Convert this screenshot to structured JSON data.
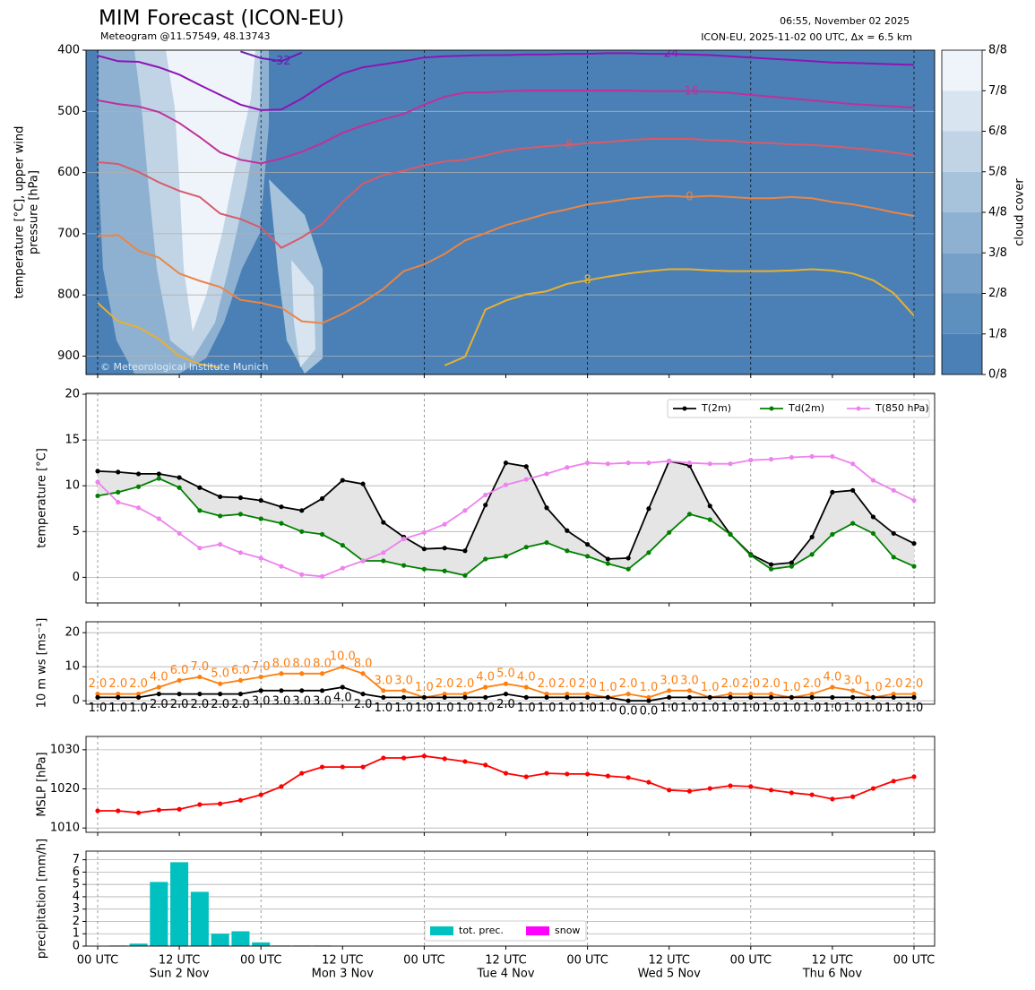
{
  "header": {
    "title": "MIM Forecast (ICON-EU)",
    "subtitle": "Meteogram @11.57549, 48.13743",
    "issued": "06:55, November 02 2025",
    "run": "ICON-EU, 2025-11-02 00 UTC, Δx = 6.5 km",
    "credit": "© Meteorological Institute Munich"
  },
  "chart_data": [
    {
      "type": "contour",
      "ylabel": [
        "temperature [°C], upper wind",
        "pressure [hPa]"
      ],
      "ylim": [
        930,
        400
      ],
      "yticks": [
        400,
        500,
        600,
        700,
        800,
        900
      ],
      "grid": true,
      "series": [
        {
          "name": "-32",
          "color": "#6a1fb0",
          "values": [
            null,
            null,
            null,
            null,
            null,
            null,
            null,
            402,
            413,
            418,
            404,
            null,
            null,
            null,
            null,
            null,
            null,
            null,
            null,
            null,
            null,
            null,
            null,
            null,
            null,
            null,
            null,
            null,
            null,
            null,
            null,
            null,
            null,
            null,
            null,
            null,
            null,
            null,
            null,
            null,
            null
          ]
        },
        {
          "name": "-24",
          "color": "#8e14b4",
          "values": [
            409,
            418,
            419,
            428,
            440,
            457,
            473,
            489,
            498,
            497,
            479,
            457,
            438,
            428,
            423,
            418,
            412,
            410,
            409,
            408,
            408,
            407,
            407,
            406,
            406,
            405,
            405,
            406,
            406,
            407,
            408,
            410,
            412,
            414,
            416,
            418,
            420,
            421,
            422,
            423,
            424
          ]
        },
        {
          "name": "-16",
          "color": "#c0309a",
          "values": [
            482,
            488,
            492,
            501,
            519,
            542,
            567,
            579,
            585,
            577,
            566,
            552,
            535,
            523,
            513,
            504,
            489,
            476,
            469,
            469,
            467,
            466,
            466,
            466,
            466,
            466,
            466,
            467,
            467,
            467,
            468,
            470,
            473,
            476,
            479,
            482,
            485,
            488,
            490,
            492,
            494
          ]
        },
        {
          "name": "-8",
          "color": "#d85a6a",
          "values": [
            583,
            586,
            599,
            616,
            630,
            640,
            667,
            676,
            690,
            723,
            706,
            684,
            648,
            618,
            604,
            597,
            588,
            582,
            579,
            572,
            564,
            560,
            557,
            555,
            552,
            550,
            547,
            545,
            545,
            545,
            547,
            548,
            551,
            552,
            554,
            555,
            557,
            560,
            563,
            567,
            572
          ]
        },
        {
          "name": "0",
          "color": "#ea8545",
          "values": [
            704,
            702,
            728,
            739,
            765,
            777,
            787,
            808,
            813,
            821,
            843,
            846,
            831,
            812,
            790,
            761,
            750,
            733,
            711,
            699,
            686,
            677,
            667,
            660,
            652,
            648,
            643,
            640,
            638,
            640,
            638,
            640,
            642,
            642,
            640,
            642,
            648,
            652,
            658,
            665,
            671
          ]
        },
        {
          "name": "8",
          "color": "#e8b030",
          "values": [
            813,
            843,
            853,
            872,
            900,
            913,
            919,
            null,
            null,
            null,
            null,
            null,
            null,
            null,
            null,
            null,
            null,
            915,
            901,
            824,
            809,
            799,
            794,
            782,
            776,
            770,
            765,
            761,
            758,
            758,
            760,
            761,
            761,
            761,
            760,
            758,
            760,
            765,
            776,
            797,
            834
          ]
        }
      ],
      "colorbar": {
        "label": "cloud cover",
        "clim": [
          0,
          8
        ],
        "colors": [
          "#4a80b6",
          "#5d8fbf",
          "#77a0c8",
          "#8eb1d2",
          "#a7c3dc",
          "#c0d4e6",
          "#d8e4f0",
          "#eff4fa"
        ],
        "ticks": [
          {
            "value": 0,
            "label": "0/8"
          },
          {
            "value": 1,
            "label": "1/8"
          },
          {
            "value": 2,
            "label": "2/8"
          },
          {
            "value": 3,
            "label": "3/8"
          },
          {
            "value": 4,
            "label": "4/8"
          },
          {
            "value": 5,
            "label": "5/8"
          },
          {
            "value": 6,
            "label": "6/8"
          },
          {
            "value": 7,
            "label": "7/8"
          },
          {
            "value": 8,
            "label": "8/8"
          }
        ]
      }
    },
    {
      "type": "line",
      "ylabel": "temperature [°C]",
      "ylim": [
        -2.8,
        20.1
      ],
      "yticks": [
        0,
        5,
        10,
        15,
        20
      ],
      "grid": true,
      "fill_between": "#e5e5e5",
      "legend": "upper right",
      "series": [
        {
          "name": "T(2m)",
          "color": "#000000",
          "values": [
            11.6,
            11.5,
            11.3,
            11.3,
            10.9,
            9.8,
            8.8,
            8.7,
            8.4,
            7.7,
            7.3,
            8.6,
            10.6,
            10.2,
            6.0,
            4.4,
            3.1,
            3.2,
            2.9,
            7.9,
            12.5,
            12.1,
            7.6,
            5.1,
            3.6,
            2.0,
            2.1,
            7.5,
            12.7,
            12.2,
            7.8,
            4.7,
            2.5,
            1.4,
            1.6,
            4.4,
            9.3,
            9.5,
            6.6,
            4.8,
            3.7
          ]
        },
        {
          "name": "Td(2m)",
          "color": "#008000",
          "values": [
            8.9,
            9.3,
            9.9,
            10.8,
            9.8,
            7.3,
            6.7,
            6.9,
            6.4,
            5.9,
            5.0,
            4.7,
            3.5,
            1.8,
            1.8,
            1.3,
            0.9,
            0.7,
            0.2,
            2.0,
            2.3,
            3.3,
            3.8,
            2.9,
            2.3,
            1.5,
            0.9,
            2.7,
            4.9,
            6.9,
            6.3,
            4.7,
            2.4,
            0.9,
            1.2,
            2.5,
            4.7,
            5.9,
            4.8,
            2.2,
            1.2
          ]
        },
        {
          "name": "T(850 hPa)",
          "color": "#ee82ee",
          "values": [
            10.4,
            8.2,
            7.6,
            6.4,
            4.8,
            3.2,
            3.6,
            2.7,
            2.1,
            1.2,
            0.3,
            0.1,
            1.0,
            1.8,
            2.7,
            4.2,
            4.9,
            5.8,
            7.3,
            9.0,
            10.1,
            10.7,
            11.3,
            12.0,
            12.5,
            12.4,
            12.5,
            12.5,
            12.7,
            12.5,
            12.4,
            12.4,
            12.8,
            12.9,
            13.1,
            13.2,
            13.2,
            12.4,
            10.6,
            9.5,
            8.4
          ]
        }
      ]
    },
    {
      "type": "line",
      "ylabel": "10 m ws [ms⁻¹]",
      "ylim": [
        -1,
        23.2
      ],
      "yticks": [
        0,
        10,
        20
      ],
      "grid": true,
      "series": [
        {
          "color": "#ff7f0e",
          "values": [
            2,
            2,
            2,
            4,
            6,
            7,
            5,
            6,
            7,
            8,
            8,
            8,
            10,
            8,
            3,
            3,
            1,
            2,
            2,
            4,
            5,
            4,
            2,
            2,
            2,
            1,
            2,
            1,
            3,
            3,
            1,
            2,
            2,
            2,
            1,
            2,
            4,
            3,
            1,
            2,
            2
          ],
          "value_labels": [
            "2.0",
            "2.0",
            "2.0",
            "4.0",
            "6.0",
            "7.0",
            "5.0",
            "6.0",
            "7.0",
            "8.0",
            "8.0",
            "8.0",
            "10.0",
            "8.0",
            "3.0",
            "3.0",
            "1.0",
            "2.0",
            "2.0",
            "4.0",
            "5.0",
            "4.0",
            "2.0",
            "2.0",
            "2.0",
            "1.0",
            "2.0",
            "1.0",
            "3.0",
            "3.0",
            "1.0",
            "2.0",
            "2.0",
            "2.0",
            "1.0",
            "2.0",
            "4.0",
            "3.0",
            "1.0",
            "2.0",
            "2.0"
          ]
        },
        {
          "color": "#000000",
          "values": [
            1,
            1,
            1,
            2,
            2,
            2,
            2,
            2,
            3,
            3,
            3,
            3,
            4,
            2,
            1,
            1,
            1,
            1,
            1,
            1,
            2,
            1,
            1,
            1,
            1,
            1,
            0,
            0,
            1,
            1,
            1,
            1,
            1,
            1,
            1,
            1,
            1,
            1,
            1,
            1,
            1
          ],
          "value_labels": [
            "1.0",
            "1.0",
            "1.0",
            "2.0",
            "2.0",
            "2.0",
            "2.0",
            "2.0",
            "3.0",
            "3.0",
            "3.0",
            "3.0",
            "4.0",
            "2.0",
            "1.0",
            "1.0",
            "1.0",
            "1.0",
            "1.0",
            "1.0",
            "2.0",
            "1.0",
            "1.0",
            "1.0",
            "1.0",
            "1.0",
            "0.0",
            "0.0",
            "1.0",
            "1.0",
            "1.0",
            "1.0",
            "1.0",
            "1.0",
            "1.0",
            "1.0",
            "1.0",
            "1.0",
            "1.0",
            "1.0",
            "1.0"
          ]
        }
      ]
    },
    {
      "type": "line",
      "ylabel": "MSLP [hPa]",
      "ylim": [
        1008.9,
        1033.4
      ],
      "yticks": [
        1010,
        1020,
        1030
      ],
      "grid": true,
      "series": [
        {
          "color": "#ff0000",
          "values": [
            1014.4,
            1014.4,
            1013.9,
            1014.6,
            1014.8,
            1016.0,
            1016.2,
            1017.1,
            1018.5,
            1020.6,
            1024.0,
            1025.6,
            1025.6,
            1025.6,
            1027.9,
            1027.9,
            1028.4,
            1027.7,
            1027.0,
            1026.1,
            1024.0,
            1023.1,
            1024.0,
            1023.8,
            1023.8,
            1023.3,
            1022.9,
            1021.7,
            1019.7,
            1019.4,
            1020.1,
            1020.8,
            1020.6,
            1019.7,
            1019.0,
            1018.5,
            1017.4,
            1018.0,
            1020.1,
            1022.0,
            1023.1
          ]
        }
      ]
    },
    {
      "type": "bar",
      "ylabel": "precipitation [mm/h]",
      "ylim": [
        0,
        7.7
      ],
      "yticks": [
        0,
        1,
        2,
        3,
        4,
        5,
        6,
        7
      ],
      "grid": true,
      "legend": "lower center",
      "categories": [
        "00 UTC",
        null,
        null,
        null,
        "12 UTC",
        null,
        null,
        null,
        "00 UTC",
        null,
        null,
        null,
        "12 UTC",
        null,
        null,
        null,
        "00 UTC",
        null,
        null,
        null,
        "12 UTC",
        null,
        null,
        null,
        "00 UTC",
        null,
        null,
        null,
        "12 UTC",
        null,
        null,
        null,
        "00 UTC",
        null,
        null,
        null,
        "12 UTC",
        null,
        null,
        null,
        "00 UTC"
      ],
      "day_labels": [
        null,
        null,
        null,
        null,
        "Sun 2 Nov",
        null,
        null,
        null,
        null,
        null,
        null,
        null,
        "Mon 3 Nov",
        null,
        null,
        null,
        null,
        null,
        null,
        null,
        "Tue 4 Nov",
        null,
        null,
        null,
        null,
        null,
        null,
        null,
        "Wed 5 Nov",
        null,
        null,
        null,
        null,
        null,
        null,
        null,
        "Thu 6 Nov",
        null,
        null,
        null,
        null
      ],
      "series": [
        {
          "name": "tot. prec.",
          "color": "#00c0c0",
          "values": [
            0,
            0.05,
            0.2,
            5.2,
            6.8,
            4.4,
            1.0,
            1.2,
            0.3,
            0.05,
            0.05,
            0.05,
            0,
            0,
            0,
            0,
            0,
            0,
            0,
            0,
            0,
            0,
            0,
            0,
            0,
            0,
            0,
            0,
            0,
            0,
            0,
            0,
            0,
            0,
            0,
            0,
            0,
            0,
            0,
            0,
            0
          ]
        },
        {
          "name": "snow",
          "color": "#ff00ff",
          "values": [
            0,
            0,
            0,
            0,
            0,
            0,
            0,
            0,
            0,
            0,
            0,
            0,
            0,
            0,
            0,
            0,
            0,
            0,
            0,
            0,
            0,
            0,
            0,
            0,
            0,
            0,
            0,
            0,
            0,
            0,
            0,
            0,
            0,
            0,
            0,
            0,
            0,
            0,
            0,
            0,
            0
          ]
        }
      ]
    }
  ]
}
